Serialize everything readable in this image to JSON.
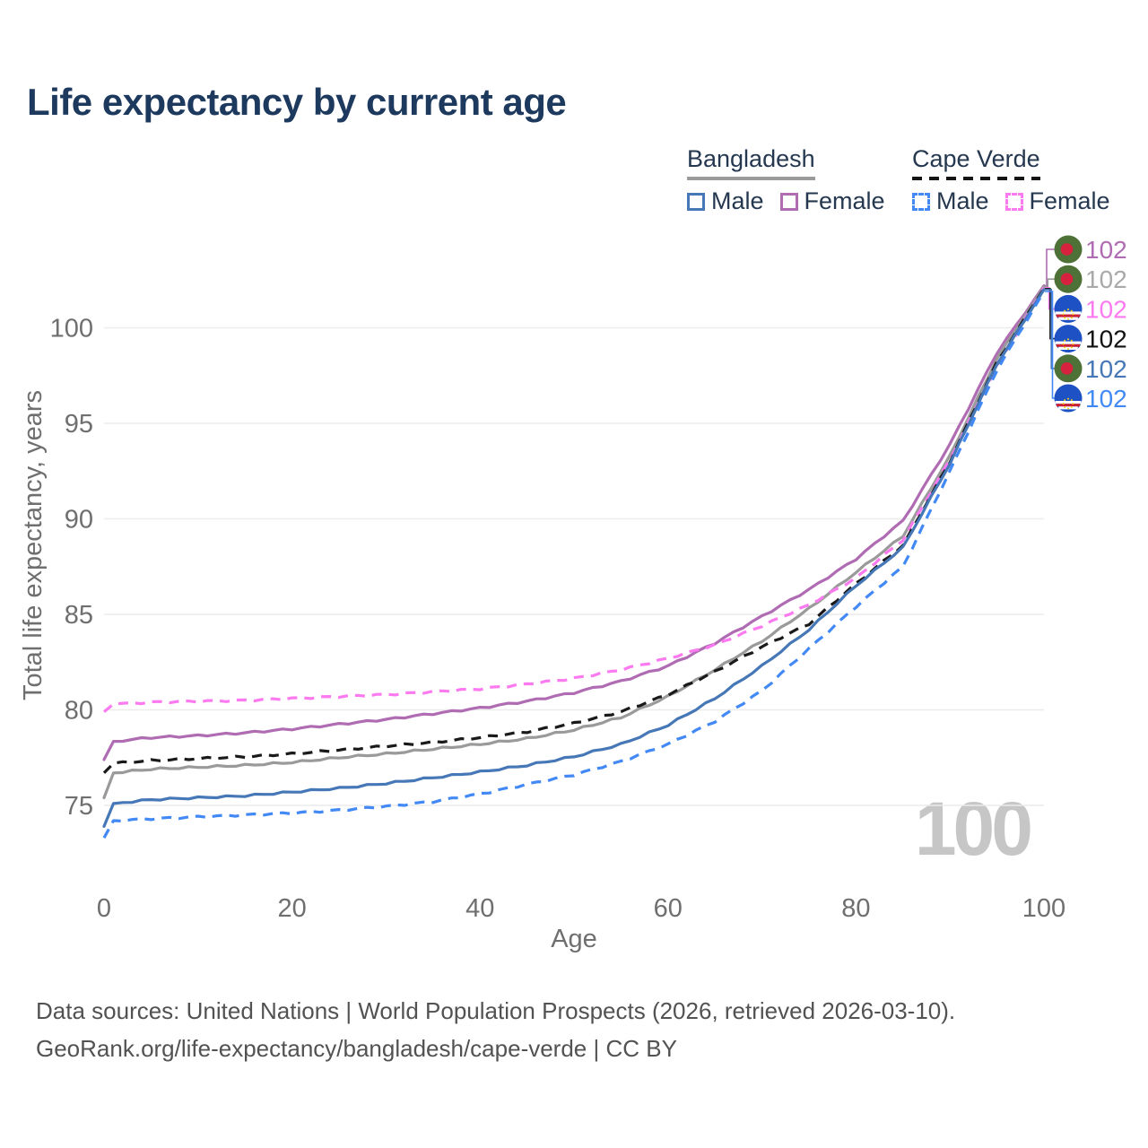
{
  "header": {
    "title": "Life expectancy by current age"
  },
  "legend": {
    "groups": [
      {
        "name": "Bangladesh",
        "line_style": "solid",
        "color": "#9b9b9b",
        "items": [
          {
            "label": "Male",
            "color": "#4677b6",
            "dashed": false
          },
          {
            "label": "Female",
            "color": "#b06cb3",
            "dashed": false
          }
        ]
      },
      {
        "name": "Cape Verde",
        "line_style": "dashed",
        "color": "#141414",
        "items": [
          {
            "label": "Male",
            "color": "#4289f5",
            "dashed": true
          },
          {
            "label": "Female",
            "color": "#fc7af0",
            "dashed": true
          }
        ]
      }
    ]
  },
  "watermark": "100",
  "chart_data": {
    "type": "line",
    "title": "Life expectancy by current age",
    "xlabel": "Age",
    "ylabel": "Total life expectancy, years",
    "x_ticks": [
      0,
      20,
      40,
      60,
      80,
      100
    ],
    "y_ticks": [
      75,
      80,
      85,
      90,
      95,
      100
    ],
    "xlim": [
      0,
      100
    ],
    "ylim": [
      73,
      102.5
    ],
    "grid": "horizontal",
    "legend_position": "top-right",
    "x": [
      0,
      1,
      5,
      10,
      15,
      20,
      25,
      30,
      35,
      40,
      45,
      50,
      55,
      60,
      65,
      70,
      75,
      80,
      85,
      90,
      95,
      100
    ],
    "series": [
      {
        "key": "bangladesh-female",
        "name": "Bangladesh Female",
        "country": "Bangladesh",
        "sex": "Female",
        "color": "#b06cb3",
        "dashed": false,
        "flag": "bd",
        "label_color": "#b06cb3",
        "end_label": "102",
        "values": [
          77.4,
          78.35,
          78.55,
          78.65,
          78.8,
          79.0,
          79.25,
          79.5,
          79.8,
          80.1,
          80.45,
          80.9,
          81.5,
          82.3,
          83.5,
          84.9,
          86.3,
          87.9,
          89.9,
          93.9,
          98.7,
          102.2
        ]
      },
      {
        "key": "bangladesh-total",
        "name": "Bangladesh",
        "country": "Bangladesh",
        "sex": "Both",
        "color": "#9a9a9a",
        "dashed": false,
        "flag": "bd",
        "label_color": "#a9a9a9",
        "end_label": "102",
        "values": [
          75.4,
          76.7,
          76.9,
          77.0,
          77.1,
          77.25,
          77.5,
          77.7,
          77.95,
          78.2,
          78.5,
          78.95,
          79.6,
          80.7,
          82.1,
          83.6,
          85.3,
          87.2,
          89.1,
          93.3,
          98.4,
          102.15
        ]
      },
      {
        "key": "cape-verde-female",
        "name": "Cape Verde Female",
        "country": "Cape Verde",
        "sex": "Female",
        "color": "#fc7af0",
        "dashed": true,
        "flag": "cv",
        "label_color": "#fc7af0",
        "end_label": "102",
        "values": [
          79.9,
          80.3,
          80.4,
          80.45,
          80.5,
          80.6,
          80.7,
          80.8,
          80.95,
          81.1,
          81.35,
          81.65,
          82.1,
          82.7,
          83.4,
          84.4,
          85.5,
          86.9,
          88.9,
          93.1,
          98.0,
          102.1
        ]
      },
      {
        "key": "cape-verde-total",
        "name": "Cape Verde",
        "country": "Cape Verde",
        "sex": "Both",
        "color": "#1a1a1a",
        "dashed": true,
        "flag": "cv",
        "label_color": "#111111",
        "end_label": "102",
        "values": [
          76.7,
          77.2,
          77.35,
          77.45,
          77.55,
          77.7,
          77.9,
          78.1,
          78.3,
          78.55,
          78.85,
          79.3,
          79.9,
          80.8,
          82.0,
          83.3,
          84.5,
          86.6,
          88.6,
          93.0,
          98.2,
          102.05
        ]
      },
      {
        "key": "bangladesh-male",
        "name": "Bangladesh Male",
        "country": "Bangladesh",
        "sex": "Male",
        "color": "#4677b6",
        "dashed": false,
        "flag": "bd",
        "label_color": "#4677b6",
        "end_label": "102",
        "values": [
          73.9,
          75.1,
          75.3,
          75.4,
          75.5,
          75.7,
          75.9,
          76.15,
          76.45,
          76.75,
          77.1,
          77.55,
          78.2,
          79.2,
          80.6,
          82.3,
          84.2,
          86.5,
          88.5,
          92.9,
          98.1,
          102.0
        ]
      },
      {
        "key": "cape-verde-male",
        "name": "Cape Verde Male",
        "country": "Cape Verde",
        "sex": "Male",
        "color": "#4289f5",
        "dashed": true,
        "flag": "cv",
        "label_color": "#4289f5",
        "end_label": "102",
        "values": [
          73.3,
          74.2,
          74.3,
          74.4,
          74.5,
          74.6,
          74.75,
          74.95,
          75.2,
          75.6,
          76.1,
          76.6,
          77.3,
          78.2,
          79.4,
          81.0,
          83.2,
          85.4,
          87.5,
          92.5,
          97.8,
          101.9
        ]
      }
    ],
    "flag_colors": {
      "bd_green": "#4e7137",
      "bd_red": "#d6213f",
      "cv_blue": "#1e52c4",
      "cv_red": "#d01f2f",
      "cv_white": "#ffffff",
      "cv_star": "#f7d116"
    }
  },
  "footer": {
    "line1": "Data sources: United Nations | World Population Prospects (2026, retrieved 2026-03-10).",
    "line2": "GeoRank.org/life-expectancy/bangladesh/cape-verde | CC BY"
  }
}
